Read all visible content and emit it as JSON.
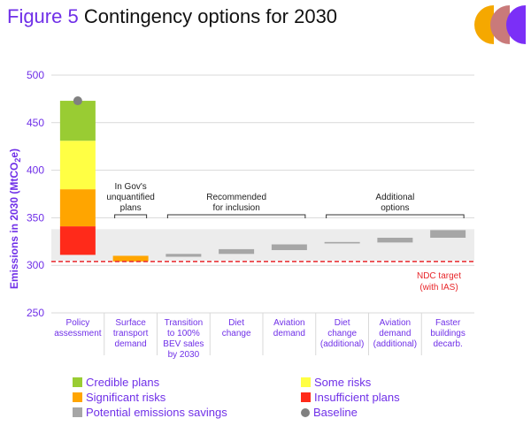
{
  "title": {
    "figure_num": "Figure 5",
    "text": "Contingency options for 2030"
  },
  "colors": {
    "credible": "#99cc33",
    "some_risks": "#ffff44",
    "significant": "#ffa500",
    "insufficient": "#ff2a1a",
    "savings": "#a6a6a6",
    "baseline": "#808080",
    "band": "#ececec",
    "ndc": "#e8262a",
    "accent": "#7030e8",
    "logo": [
      "#f5a800",
      "#c97a7a",
      "#7b2ff7"
    ]
  },
  "chart_data": {
    "type": "bar",
    "title": "Contingency options for 2030",
    "ylabel": "Emissions in 2030 (MtCO",
    "ylabel_sub": "2",
    "ylabel_end": "e)",
    "ylim": [
      250,
      500
    ],
    "yticks": [
      "250",
      "300",
      "350",
      "400",
      "450",
      "500"
    ],
    "grid": true,
    "categories": [
      [
        "Policy",
        "assessment"
      ],
      [
        "Surface",
        "transport",
        "demand"
      ],
      [
        "Transition",
        "to 100%",
        "BEV sales",
        "by 2030"
      ],
      [
        "Diet",
        "change"
      ],
      [
        "Aviation",
        "demand"
      ],
      [
        "Diet",
        "change",
        "(additional)"
      ],
      [
        "Aviation",
        "demand",
        "(additional)"
      ],
      [
        "Faster",
        "buildings",
        "decarb."
      ]
    ],
    "policy_stack": [
      {
        "name": "Insufficient plans",
        "from": 311,
        "to": 341
      },
      {
        "name": "Significant risks",
        "from": 341,
        "to": 380
      },
      {
        "name": "Some risks",
        "from": 380,
        "to": 431
      },
      {
        "name": "Credible plans",
        "from": 431,
        "to": 473
      }
    ],
    "baseline": 473,
    "savings": [
      {
        "category": 1,
        "from": 304,
        "to": 310,
        "color": "significant"
      },
      {
        "category": 2,
        "from": 309,
        "to": 312,
        "color": "savings"
      },
      {
        "category": 3,
        "from": 312,
        "to": 317,
        "color": "savings"
      },
      {
        "category": 4,
        "from": 316,
        "to": 322,
        "color": "savings"
      },
      {
        "category": 5,
        "from": 323,
        "to": 324.5,
        "color": "savings"
      },
      {
        "category": 6,
        "from": 324,
        "to": 329,
        "color": "savings"
      },
      {
        "category": 7,
        "from": 329,
        "to": 337,
        "color": "savings"
      }
    ],
    "band": [
      305,
      338
    ],
    "ndc_target": 304,
    "ndc_label": [
      "NDC target",
      "(with IAS)"
    ],
    "groups": [
      {
        "label": [
          "In Gov's",
          "unquantified",
          "plans"
        ],
        "from": 1,
        "to": 1
      },
      {
        "label": [
          "Recommended",
          "for inclusion"
        ],
        "from": 2,
        "to": 4
      },
      {
        "label": [
          "Additional",
          "options"
        ],
        "from": 5,
        "to": 7
      }
    ]
  },
  "legend": [
    {
      "label": "Credible plans",
      "color": "credible",
      "shape": "square"
    },
    {
      "label": "Some risks",
      "color": "some_risks",
      "shape": "square"
    },
    {
      "label": "Significant risks",
      "color": "significant",
      "shape": "square"
    },
    {
      "label": "Insufficient plans",
      "color": "insufficient",
      "shape": "square"
    },
    {
      "label": "Potential emissions savings",
      "color": "savings",
      "shape": "square"
    },
    {
      "label": "Baseline",
      "color": "baseline",
      "shape": "circle"
    }
  ]
}
